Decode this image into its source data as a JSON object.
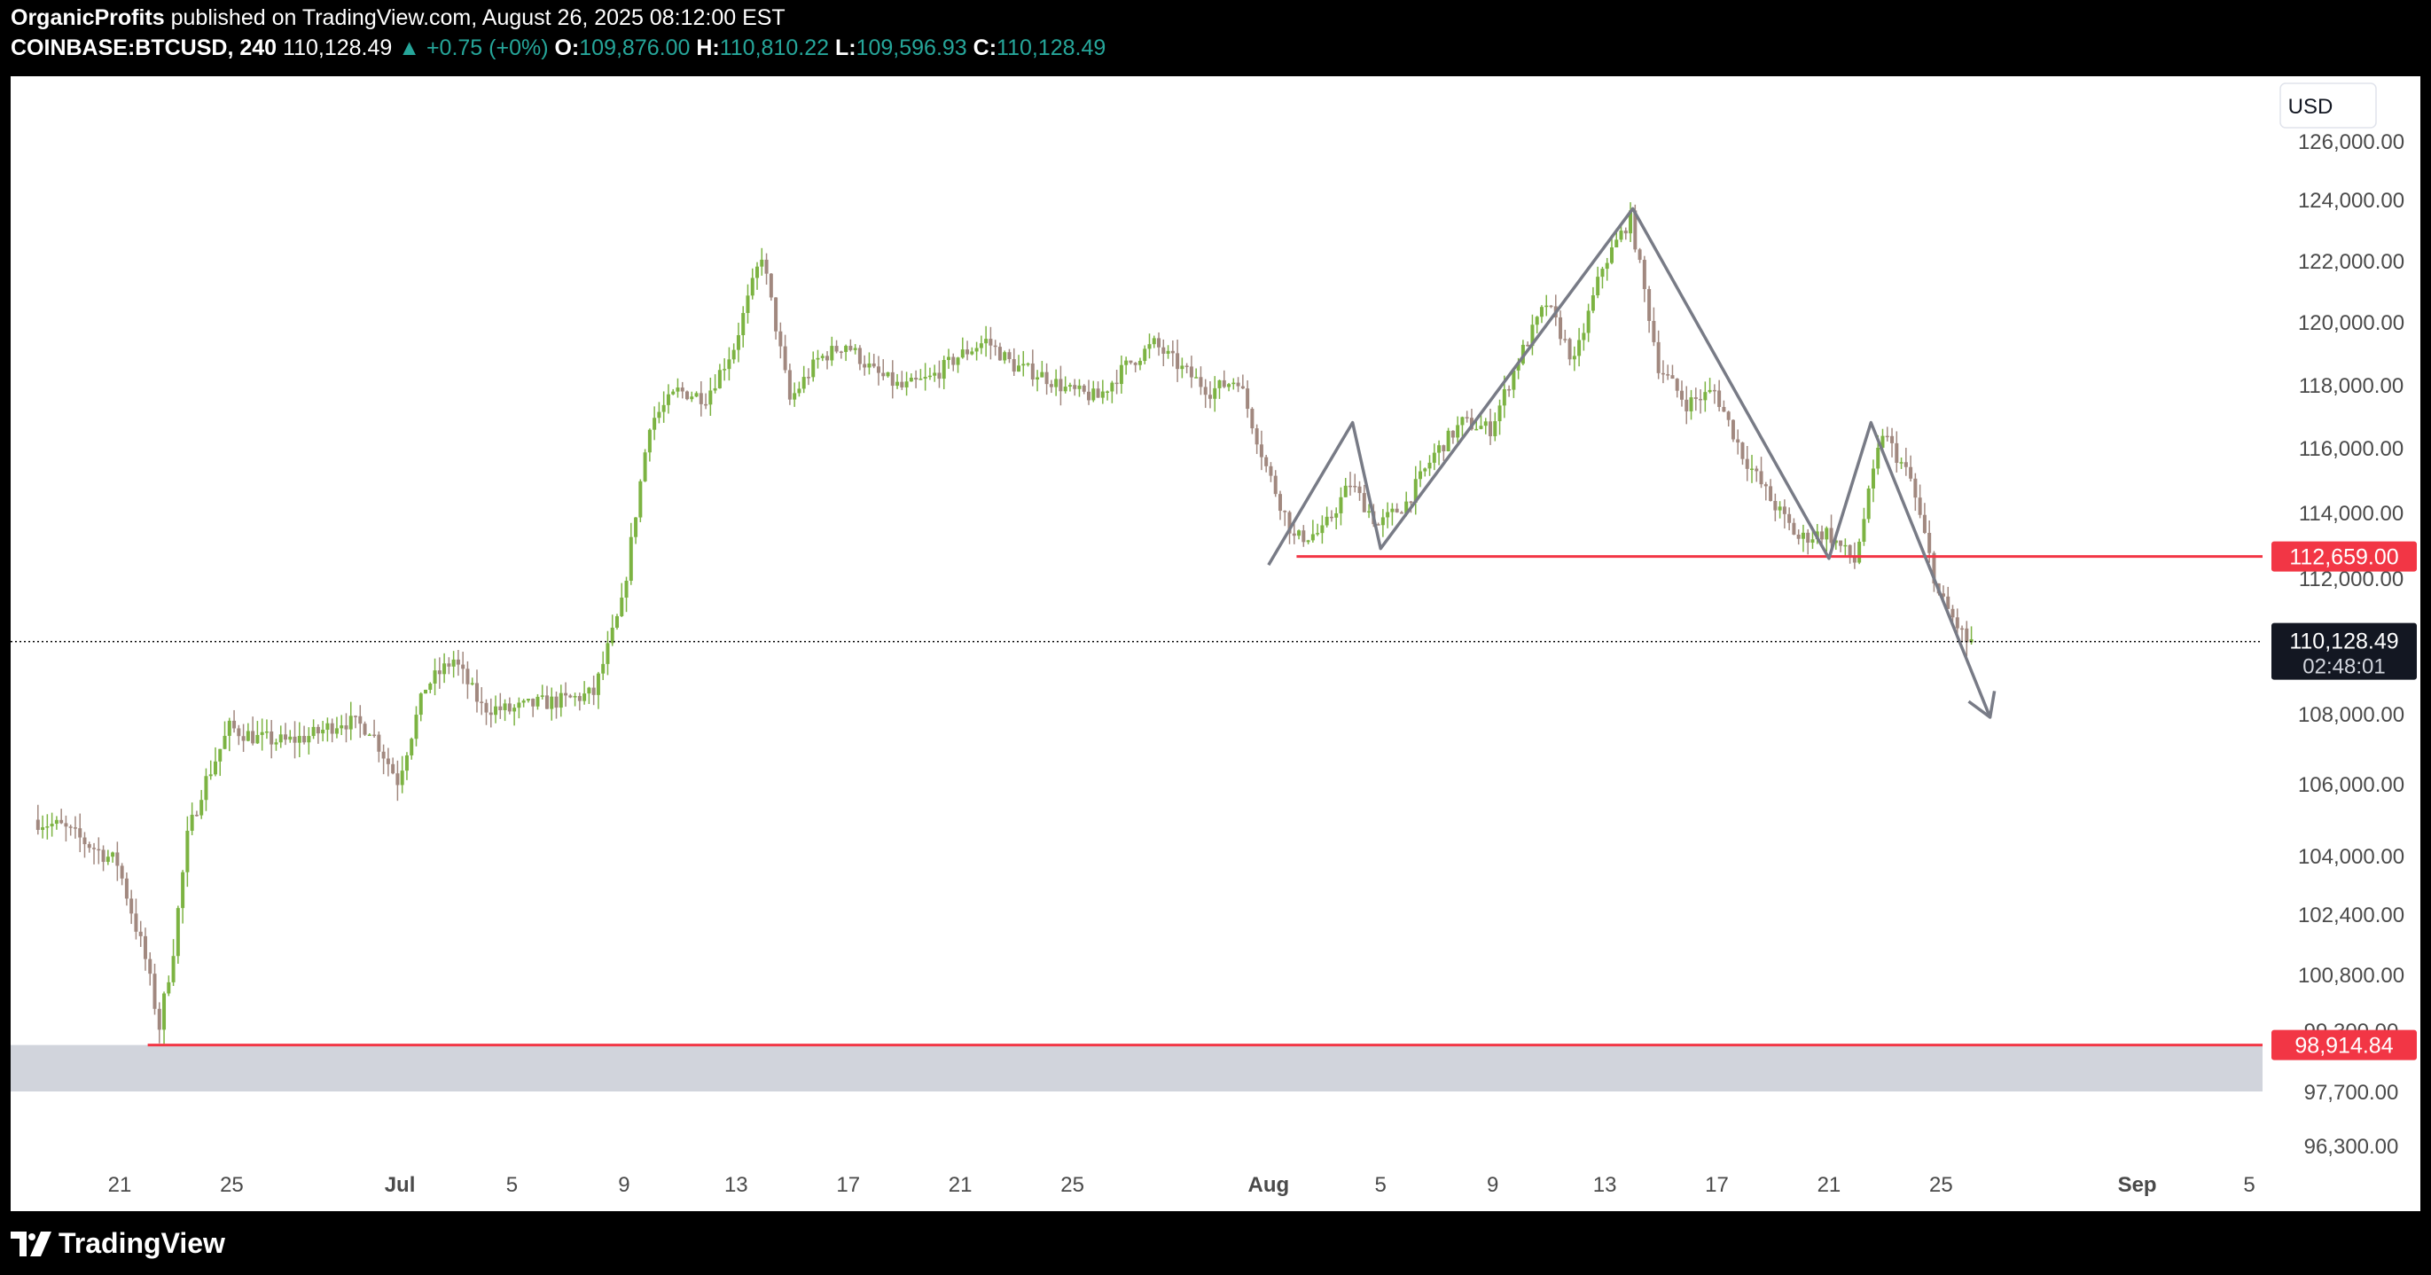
{
  "header": {
    "author": "OrganicProfits",
    "published": "published on TradingView.com, August 26, 2025 08:12:00 EST",
    "symbol": "COINBASE:BTCUSD, 240",
    "last": "110,128.49",
    "change": "▲ +0.75 (+0%)",
    "o_label": "O:",
    "o_value": "109,876.00",
    "h_label": "H:",
    "h_value": "110,810.22",
    "l_label": "L:",
    "l_value": "109,596.93",
    "c_label": "C:",
    "c_value": "110,128.49"
  },
  "footer": {
    "brand": "TradingView"
  },
  "chart_data": {
    "type": "candlestick",
    "currency": "USD",
    "y_ticks": [
      {
        "label": "126,000.00",
        "value": 126000
      },
      {
        "label": "124,000.00",
        "value": 124000
      },
      {
        "label": "122,000.00",
        "value": 122000
      },
      {
        "label": "120,000.00",
        "value": 120000
      },
      {
        "label": "118,000.00",
        "value": 118000
      },
      {
        "label": "116,000.00",
        "value": 116000
      },
      {
        "label": "114,000.00",
        "value": 114000
      },
      {
        "label": "112,000.00",
        "value": 112000
      },
      {
        "label": "108,000.00",
        "value": 108000
      },
      {
        "label": "106,000.00",
        "value": 106000
      },
      {
        "label": "104,000.00",
        "value": 104000
      },
      {
        "label": "102,400.00",
        "value": 102400
      },
      {
        "label": "100,800.00",
        "value": 100800
      },
      {
        "label": "99,300.00",
        "value": 99300
      },
      {
        "label": "97,700.00",
        "value": 97700
      },
      {
        "label": "96,300.00",
        "value": 96300
      }
    ],
    "x_ticks": [
      {
        "label": "21",
        "date": "2025-06-21"
      },
      {
        "label": "25",
        "date": "2025-06-25"
      },
      {
        "label": "Jul",
        "date": "2025-07-01"
      },
      {
        "label": "5",
        "date": "2025-07-05"
      },
      {
        "label": "9",
        "date": "2025-07-09"
      },
      {
        "label": "13",
        "date": "2025-07-13"
      },
      {
        "label": "17",
        "date": "2025-07-17"
      },
      {
        "label": "21",
        "date": "2025-07-21"
      },
      {
        "label": "25",
        "date": "2025-07-25"
      },
      {
        "label": "Aug",
        "date": "2025-08-01"
      },
      {
        "label": "5",
        "date": "2025-08-05"
      },
      {
        "label": "9",
        "date": "2025-08-09"
      },
      {
        "label": "13",
        "date": "2025-08-13"
      },
      {
        "label": "17",
        "date": "2025-08-17"
      },
      {
        "label": "21",
        "date": "2025-08-21"
      },
      {
        "label": "25",
        "date": "2025-08-25"
      },
      {
        "label": "Sep",
        "date": "2025-09-01"
      },
      {
        "label": "5",
        "date": "2025-09-05"
      }
    ],
    "x_range": [
      "2025-06-18",
      "2025-09-05"
    ],
    "price_path": [
      [
        "2025-06-18",
        105000
      ],
      [
        "2025-06-19",
        104800
      ],
      [
        "2025-06-20",
        104300
      ],
      [
        "2025-06-21",
        103800
      ],
      [
        "2025-06-22",
        101200
      ],
      [
        "2025-06-22T12",
        99400
      ],
      [
        "2025-06-23",
        101500
      ],
      [
        "2025-06-23T12",
        104500
      ],
      [
        "2025-06-24",
        105800
      ],
      [
        "2025-06-25",
        107600
      ],
      [
        "2025-06-26",
        107300
      ],
      [
        "2025-06-27",
        107200
      ],
      [
        "2025-06-28",
        107400
      ],
      [
        "2025-06-29",
        107800
      ],
      [
        "2025-06-30",
        107600
      ],
      [
        "2025-07-01",
        106100
      ],
      [
        "2025-07-02",
        108800
      ],
      [
        "2025-07-03",
        109600
      ],
      [
        "2025-07-04",
        108200
      ],
      [
        "2025-07-05",
        108100
      ],
      [
        "2025-07-06",
        108300
      ],
      [
        "2025-07-07",
        108400
      ],
      [
        "2025-07-08",
        108600
      ],
      [
        "2025-07-09",
        111200
      ],
      [
        "2025-07-10",
        116800
      ],
      [
        "2025-07-11",
        117800
      ],
      [
        "2025-07-12",
        117600
      ],
      [
        "2025-07-13",
        119200
      ],
      [
        "2025-07-14",
        122200
      ],
      [
        "2025-07-15",
        117500
      ],
      [
        "2025-07-16",
        118800
      ],
      [
        "2025-07-17",
        119300
      ],
      [
        "2025-07-18",
        118400
      ],
      [
        "2025-07-19",
        117900
      ],
      [
        "2025-07-20",
        118200
      ],
      [
        "2025-07-21",
        118900
      ],
      [
        "2025-07-22",
        119400
      ],
      [
        "2025-07-23",
        118600
      ],
      [
        "2025-07-24",
        118300
      ],
      [
        "2025-07-25",
        117800
      ],
      [
        "2025-07-26",
        117600
      ],
      [
        "2025-07-27",
        118600
      ],
      [
        "2025-07-28",
        119300
      ],
      [
        "2025-07-29",
        118500
      ],
      [
        "2025-07-30",
        117800
      ],
      [
        "2025-07-31",
        118200
      ],
      [
        "2025-08-01",
        115400
      ],
      [
        "2025-08-02",
        113200
      ],
      [
        "2025-08-03",
        113400
      ],
      [
        "2025-08-04",
        114900
      ],
      [
        "2025-08-05",
        113600
      ],
      [
        "2025-08-06",
        114300
      ],
      [
        "2025-08-07",
        115800
      ],
      [
        "2025-08-08",
        116800
      ],
      [
        "2025-08-09",
        116600
      ],
      [
        "2025-08-10",
        118800
      ],
      [
        "2025-08-11",
        120600
      ],
      [
        "2025-08-12",
        118700
      ],
      [
        "2025-08-13",
        121800
      ],
      [
        "2025-08-14",
        123400
      ],
      [
        "2025-08-15",
        118600
      ],
      [
        "2025-08-16",
        117400
      ],
      [
        "2025-08-17",
        117800
      ],
      [
        "2025-08-18",
        115800
      ],
      [
        "2025-08-19",
        114400
      ],
      [
        "2025-08-20",
        113200
      ],
      [
        "2025-08-21",
        113400
      ],
      [
        "2025-08-22",
        112500
      ],
      [
        "2025-08-23",
        116500
      ],
      [
        "2025-08-24",
        115000
      ],
      [
        "2025-08-25",
        111500
      ],
      [
        "2025-08-26",
        110128
      ]
    ],
    "annotations": {
      "levels": [
        {
          "price": 112659,
          "label": "112,659.00",
          "from": "2025-08-02",
          "color": "#f23645"
        },
        {
          "price": 98914.84,
          "label": "98,914.84",
          "from": "2025-06-22",
          "color": "#f23645"
        }
      ],
      "zone": {
        "from_price": 97700,
        "to_price": 98914.84,
        "from": "2025-06-18",
        "color": "#d1d4dc"
      },
      "zigzag": [
        [
          "2025-08-01",
          112400
        ],
        [
          "2025-08-04",
          116800
        ],
        [
          "2025-08-05",
          112900
        ],
        [
          "2025-08-14",
          123700
        ],
        [
          "2025-08-21",
          112600
        ],
        [
          "2025-08-22T12",
          116800
        ],
        [
          "2025-08-26T18",
          107900
        ]
      ],
      "current_price": {
        "label": "110,128.49",
        "price": 110128.49,
        "countdown": "02:48:01"
      }
    },
    "colors": {
      "up": "#7cb342",
      "down": "#a1887f",
      "level": "#f23645"
    }
  }
}
